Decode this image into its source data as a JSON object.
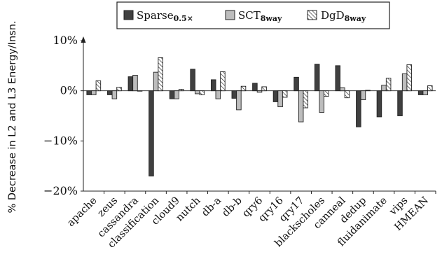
{
  "chart_data": {
    "type": "bar",
    "title": "",
    "xlabel": "",
    "ylabel": "% Decrease in L2 and L3 Energy/Insn.",
    "ylim": [
      -20,
      10
    ],
    "yticks": [
      10,
      0,
      -10,
      -20
    ],
    "ytick_labels": [
      "10%",
      "0%",
      "−10%",
      "−20%"
    ],
    "grid": false,
    "legend_position": "top",
    "categories": [
      "apache",
      "zeus",
      "cassandra",
      "classification",
      "cloud9",
      "nutch",
      "db-a",
      "db-b",
      "qry6",
      "qry16",
      "qry17",
      "blackscholes",
      "canneal",
      "dedup",
      "fluidanimate",
      "vips",
      "HMEAN"
    ],
    "series": [
      {
        "name": "SPARSE",
        "legend_base": "Sparse",
        "legend_sub": "0.5×",
        "pattern": "solid-dark",
        "color": "#404040",
        "values": [
          -0.8,
          -0.8,
          2.8,
          -17.0,
          -1.6,
          4.3,
          2.2,
          -1.5,
          1.5,
          -2.2,
          2.7,
          5.3,
          5.0,
          -7.2,
          -5.2,
          -5.0,
          -0.8
        ]
      },
      {
        "name": "SCT",
        "legend_base": "SCT",
        "legend_sub": "8way",
        "pattern": "solid-light",
        "color": "#bdbdbd",
        "values": [
          -0.8,
          -1.6,
          3.1,
          3.7,
          -1.6,
          -0.6,
          -1.6,
          -3.8,
          -0.3,
          -3.2,
          -6.2,
          -4.3,
          0.6,
          -1.8,
          1.1,
          3.4,
          -0.8
        ]
      },
      {
        "name": "DGD",
        "legend_base": "DgD",
        "legend_sub": "8way",
        "pattern": "hatched",
        "color": "#ffffff",
        "values": [
          2.0,
          0.7,
          0.0,
          6.6,
          0.3,
          -0.8,
          3.8,
          0.9,
          0.8,
          -1.3,
          -3.4,
          -1.1,
          -1.4,
          0.1,
          2.5,
          5.2,
          1.0
        ]
      }
    ]
  }
}
